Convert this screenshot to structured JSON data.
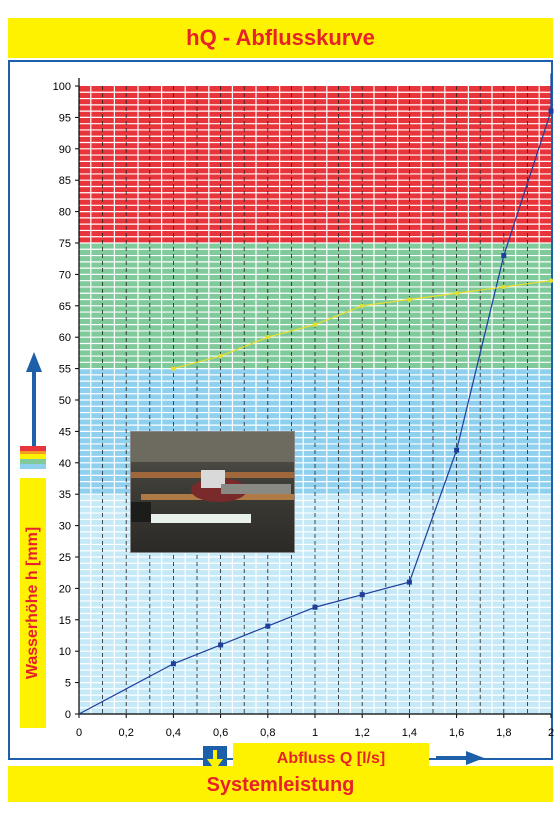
{
  "title": "hQ - Abflusskurve",
  "footer": "Systemleistung",
  "chart_data": {
    "type": "line",
    "xlabel": "Abfluss Q [l/s]",
    "ylabel": "Wasserhöhe h [mm]",
    "xlim": [
      0,
      2
    ],
    "ylim": [
      0,
      100
    ],
    "x_ticks": [
      "0",
      "0,2",
      "0,4",
      "0,6",
      "0,8",
      "1",
      "1,2",
      "1,4",
      "1,6",
      "1,8",
      "2"
    ],
    "y_ticks": [
      "0",
      "5",
      "10",
      "15",
      "20",
      "25",
      "30",
      "35",
      "40",
      "45",
      "50",
      "55",
      "60",
      "65",
      "70",
      "75",
      "80",
      "85",
      "90",
      "95",
      "100"
    ],
    "zones": [
      {
        "from": 75,
        "to": 100,
        "color": "#e8353b"
      },
      {
        "from": 55,
        "to": 75,
        "color": "#7fc99a"
      },
      {
        "from": 35,
        "to": 55,
        "color": "#8fd0ef"
      },
      {
        "from": 0,
        "to": 35,
        "color": "#c6e9f8"
      }
    ],
    "series": [
      {
        "color": "#1e3f9c",
        "points": [
          [
            0,
            0
          ],
          [
            0.4,
            8
          ],
          [
            0.6,
            11
          ],
          [
            0.8,
            14
          ],
          [
            1.0,
            17
          ],
          [
            1.2,
            19
          ],
          [
            1.4,
            21
          ],
          [
            1.6,
            42
          ],
          [
            1.8,
            73
          ],
          [
            2.0,
            96
          ]
        ],
        "extension": [
          2.0,
          102
        ]
      },
      {
        "color": "#e6e02a",
        "points": [
          [
            0.4,
            55
          ],
          [
            0.6,
            57
          ],
          [
            0.8,
            60
          ],
          [
            1.0,
            62
          ],
          [
            1.2,
            65
          ],
          [
            1.4,
            66
          ],
          [
            1.6,
            67
          ],
          [
            1.8,
            68
          ],
          [
            2.0,
            69
          ]
        ]
      }
    ],
    "grid": true
  },
  "colors": {
    "banner_bg": "#fff200",
    "banner_text": "#e8222a",
    "arrow": "#1d5fa8"
  }
}
